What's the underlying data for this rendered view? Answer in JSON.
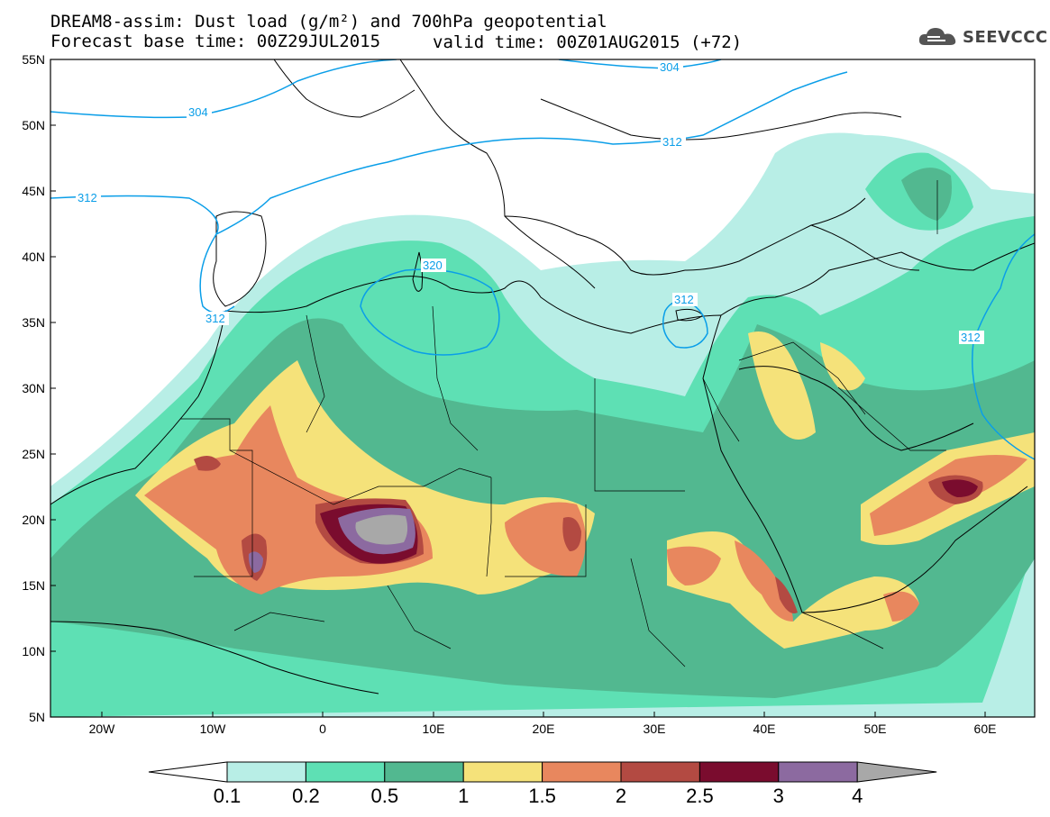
{
  "header": {
    "title": "DREAM8-assim: Dust load (g/m²) and 700hPa geopotential",
    "base_time": "Forecast base time: 00Z29JUL2015",
    "valid_time": "valid time: 00Z01AUG2015 (+72)",
    "logo_text": "SEEVCCC",
    "logo_icon": "cloud-logo-icon"
  },
  "axes": {
    "lat_labels": [
      "55N",
      "50N",
      "45N",
      "40N",
      "35N",
      "30N",
      "25N",
      "20N",
      "15N",
      "10N",
      "5N"
    ],
    "lon_labels": [
      "20W",
      "10W",
      "0",
      "10E",
      "20E",
      "30E",
      "40E",
      "50E",
      "60E"
    ]
  },
  "isolines": {
    "labels": [
      "304",
      "304",
      "312",
      "312",
      "312",
      "320",
      "312",
      "312"
    ],
    "color": "#0a9ee8"
  },
  "colorbar": {
    "labels": [
      "0.1",
      "0.2",
      "0.5",
      "1",
      "1.5",
      "2",
      "2.5",
      "3",
      "4"
    ],
    "colors": [
      "#ffffff",
      "#b8eee6",
      "#5ee0b4",
      "#52b890",
      "#f5e27a",
      "#e8875e",
      "#b34a42",
      "#7a0c2e",
      "#8c6aa0",
      "#a8a8a8"
    ]
  }
}
